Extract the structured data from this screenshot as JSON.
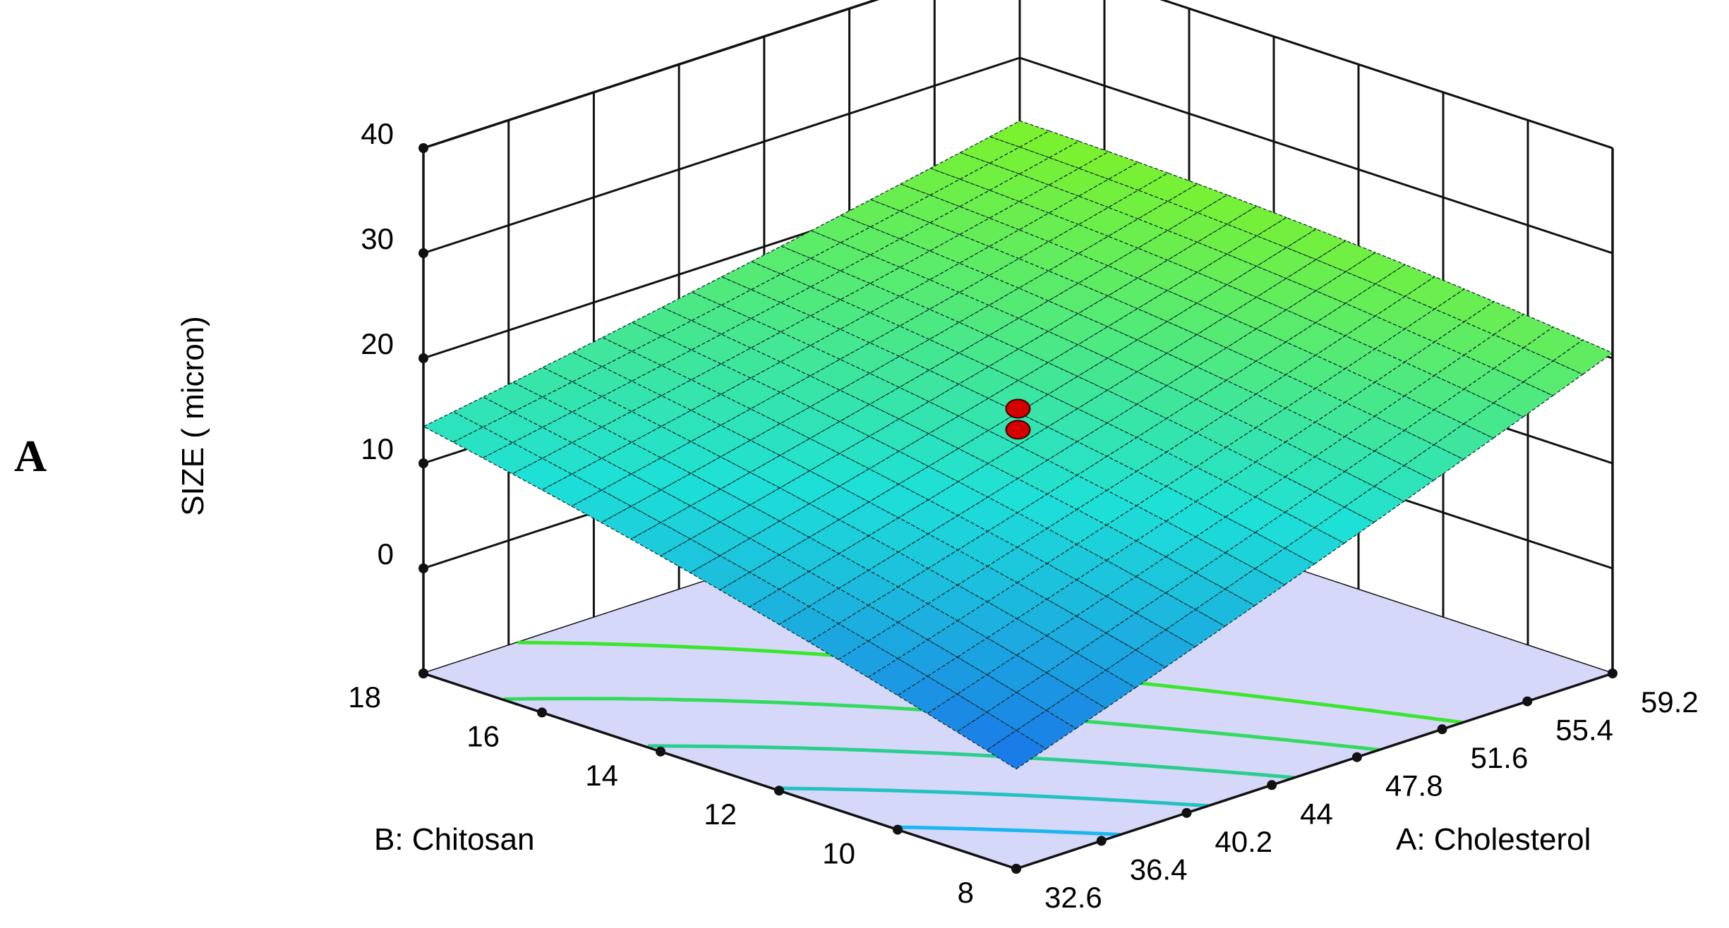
{
  "panel_label": "A",
  "chart_data": {
    "type": "surface",
    "z_axis": {
      "label": "SIZE ( micron)",
      "ticks": [
        0,
        10,
        20,
        30,
        40
      ],
      "range": [
        -10,
        40
      ]
    },
    "x_axis": {
      "label": "A: Cholesterol",
      "ticks": [
        32.6,
        36.4,
        40.2,
        44,
        47.8,
        51.6,
        55.4,
        59.2
      ],
      "range": [
        32.6,
        59.2
      ]
    },
    "y_axis": {
      "label": "B: Chitosan",
      "ticks": [
        8,
        10,
        12,
        14,
        16,
        18
      ],
      "range": [
        8,
        18
      ]
    },
    "surface_corners": [
      {
        "cholesterol": 32.6,
        "chitosan": 8,
        "size": -0.5
      },
      {
        "cholesterol": 32.6,
        "chitosan": 18,
        "size": 13.5
      },
      {
        "cholesterol": 59.2,
        "chitosan": 8,
        "size": 20.5
      },
      {
        "cholesterol": 59.2,
        "chitosan": 18,
        "size": 24
      }
    ],
    "design_points": [
      {
        "cholesterol": 45.9,
        "chitosan": 13,
        "size": 15.2
      },
      {
        "cholesterol": 45.9,
        "chitosan": 13,
        "size": 13.2
      }
    ],
    "contour_levels": [
      3,
      6,
      9,
      12,
      15
    ],
    "color_scale": {
      "low": "#1a6fe8",
      "high": "#7df22b"
    },
    "floor_color": "#d6d8fa",
    "grid": true
  }
}
